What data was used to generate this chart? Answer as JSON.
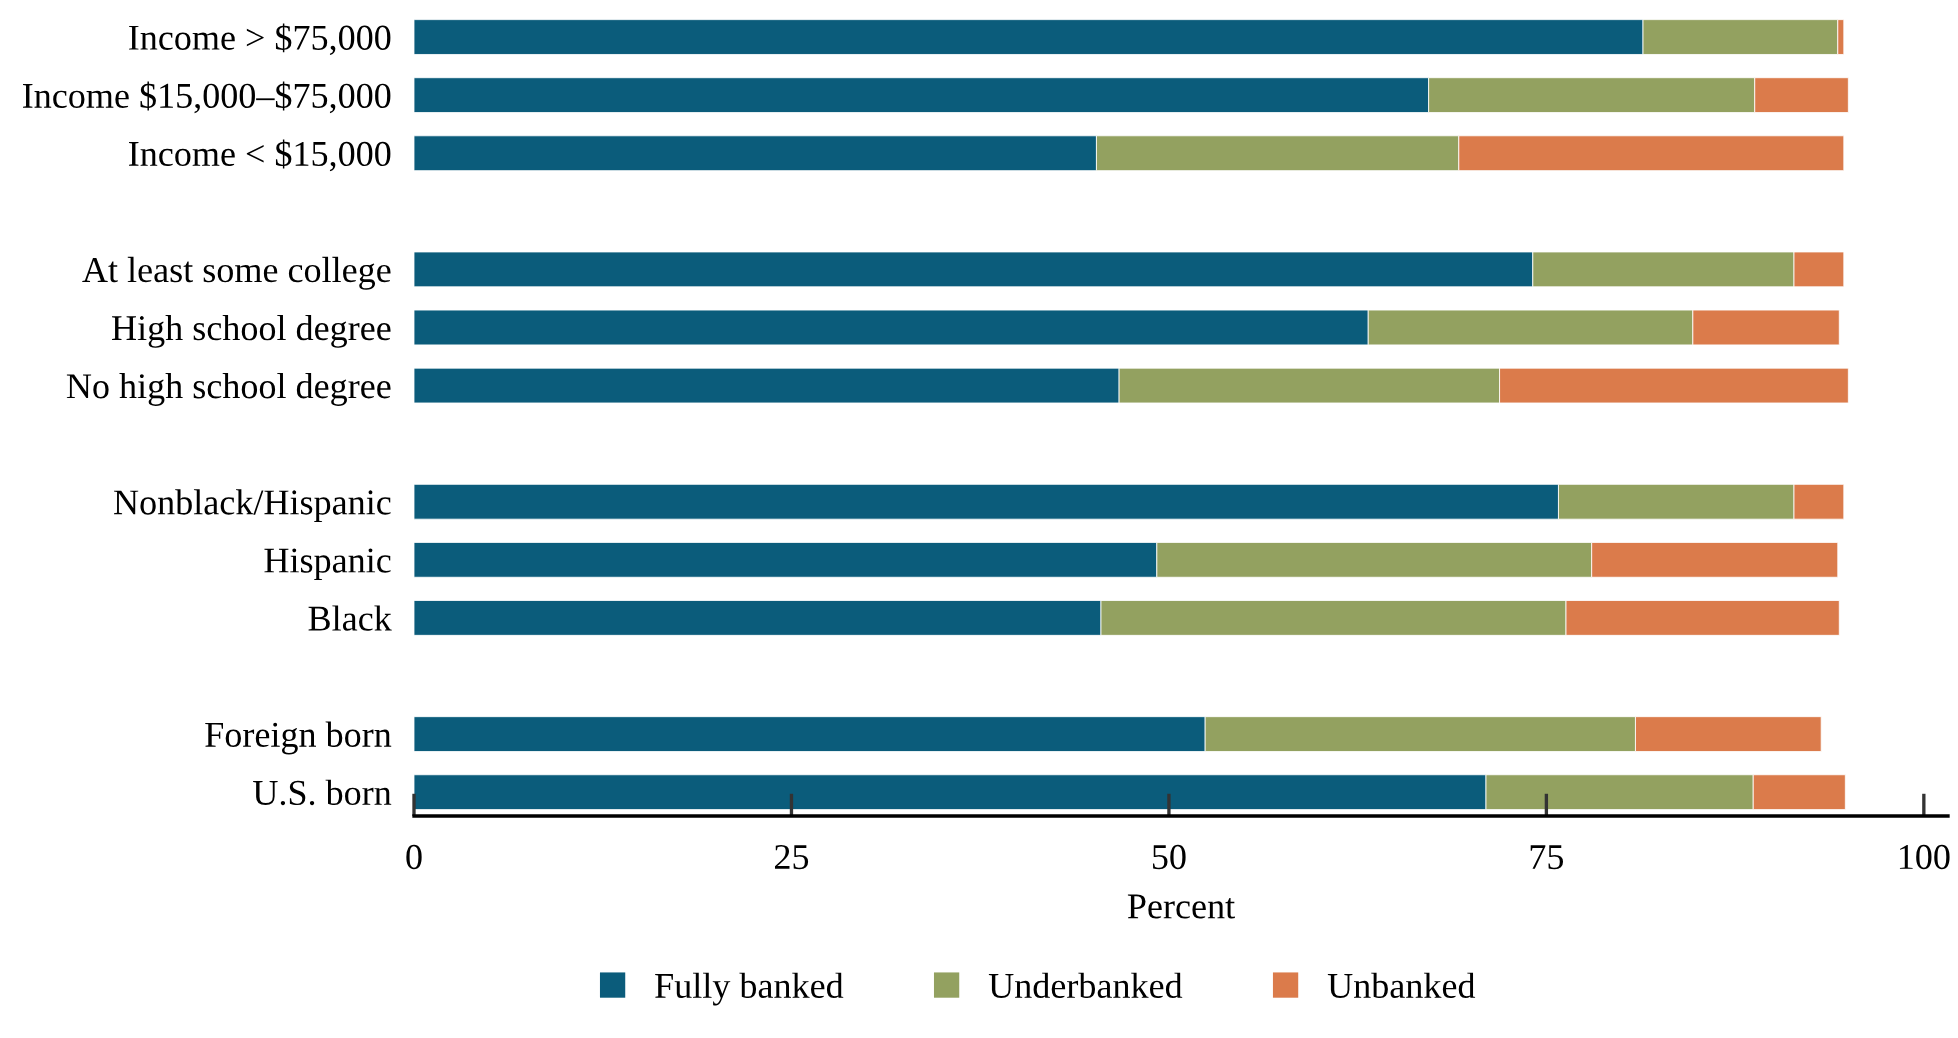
{
  "chart_data": {
    "type": "bar",
    "orientation": "horizontal",
    "stacked": true,
    "xlabel": "Percent",
    "categories": [
      "Income > $75,000",
      "Income $15,000–$75,000",
      "Income < $15,000",
      null,
      "At least some college",
      "High school degree",
      "No high school degree",
      null,
      "Nonblack/Hispanic",
      "Hispanic",
      "Black",
      null,
      "Foreign born",
      "U.S. born"
    ],
    "series": [
      {
        "name": "Fully banked",
        "color": "#0b5c7b",
        "values": [
          81.4,
          67.2,
          45.2,
          null,
          74.1,
          63.2,
          46.7,
          null,
          75.8,
          49.2,
          45.5,
          null,
          52.4,
          71.0
        ]
      },
      {
        "name": "Underbanked",
        "color": "#93a160",
        "values": [
          12.9,
          21.6,
          24.0,
          null,
          17.3,
          21.5,
          25.2,
          null,
          15.6,
          28.8,
          30.8,
          null,
          28.5,
          17.7
        ]
      },
      {
        "name": "Unbanked",
        "color": "#db7b4b",
        "values": [
          0.4,
          6.2,
          25.5,
          null,
          3.3,
          9.7,
          23.1,
          null,
          3.3,
          16.3,
          18.1,
          null,
          12.3,
          6.1
        ]
      }
    ],
    "xlim": [
      0,
      101.6
    ],
    "xticks": [
      0,
      25,
      50,
      75,
      100
    ],
    "grid": false,
    "legend": "bottom"
  }
}
